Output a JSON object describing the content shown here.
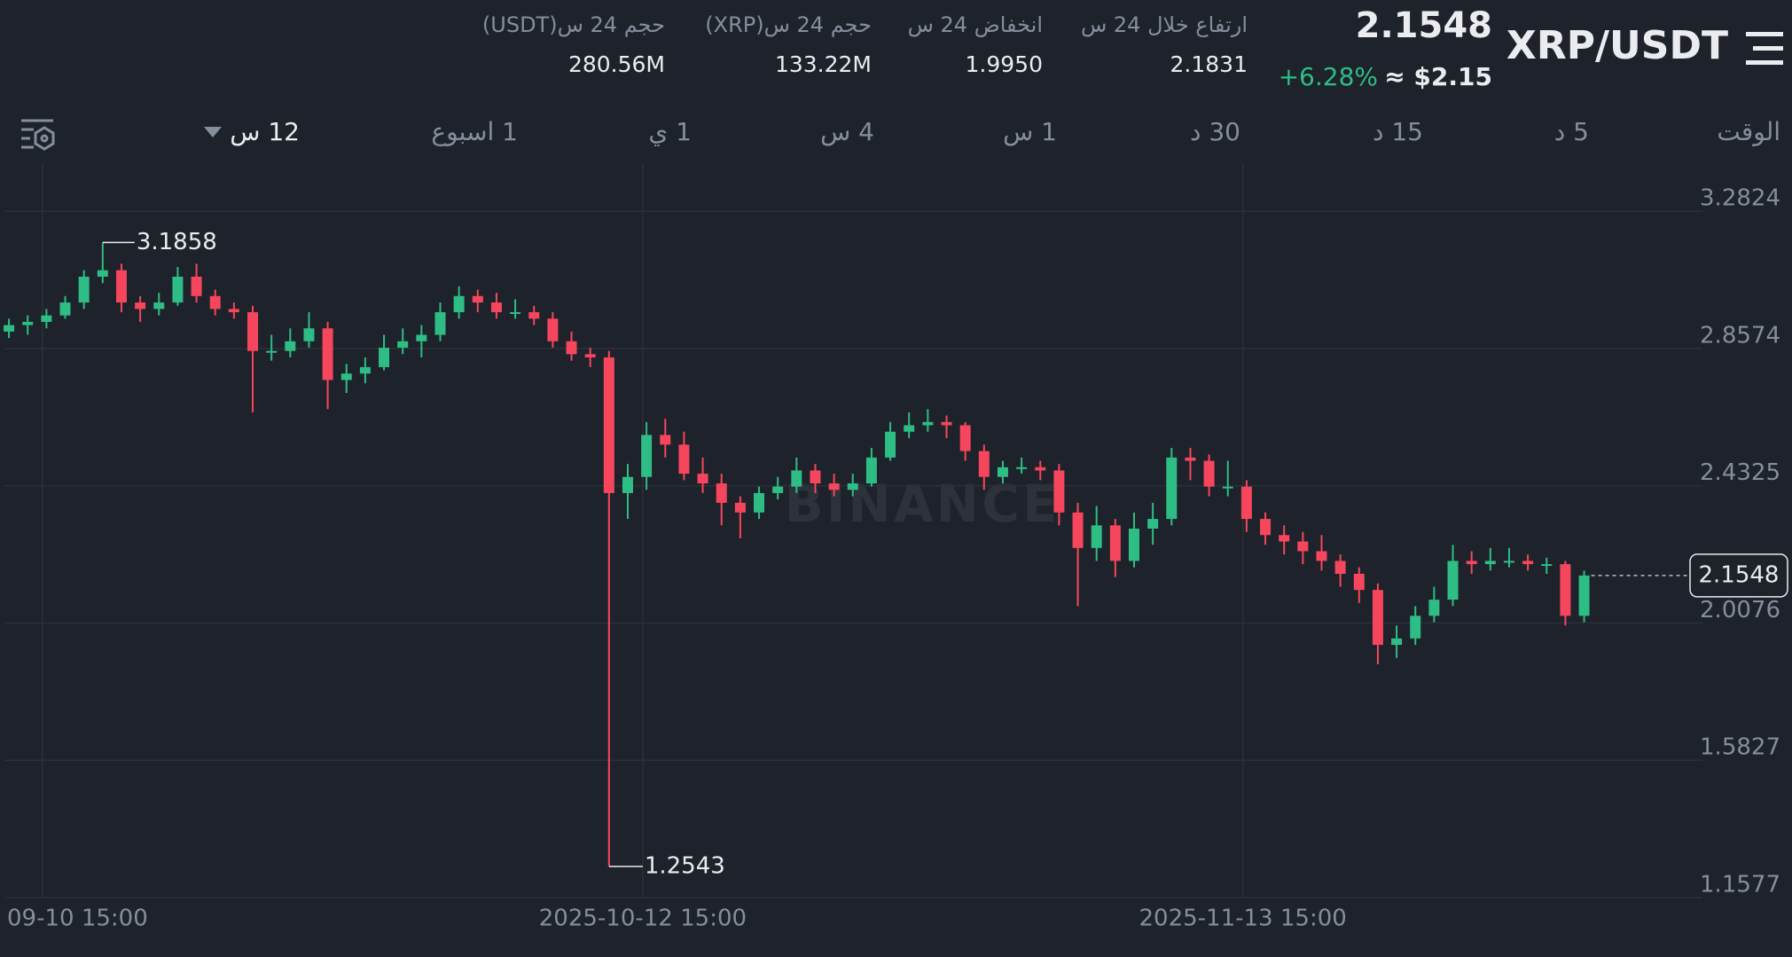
{
  "header": {
    "pair": "XRP/USDT",
    "last_price": "2.1548",
    "change": "+6.28%",
    "usd_price": "≈ $2.15",
    "stats": [
      {
        "label": "ارتفاع خلال 24 س",
        "value": "2.1831"
      },
      {
        "label": "انخفاض 24 س",
        "value": "1.9950"
      },
      {
        "label": "حجم 24 س(XRP)",
        "value": "133.22M"
      },
      {
        "label": "حجم 24 س(USDT)",
        "value": "280.56M"
      }
    ]
  },
  "intervals": [
    "الوقت",
    "5 د",
    "15 د",
    "30 د",
    "1 س",
    "4 س",
    "1 ي",
    "1 اسبوع",
    "12 س"
  ],
  "chart_data": {
    "type": "candlestick",
    "watermark": "BINANCE",
    "up_color": "#2ebd85",
    "down_color": "#f6465d",
    "grid": true,
    "ylim": [
      1.1577,
      3.4313
    ],
    "yticks": [
      3.2824,
      2.8574,
      2.4325,
      2.0076,
      1.5827,
      1.1577
    ],
    "xlim": [
      -0.24,
      89.6
    ],
    "xticks": [
      {
        "value": 1.78,
        "label": "09-10 15:00"
      },
      {
        "value": 33.8,
        "label": "2025-10-12 15:00"
      },
      {
        "value": 65.8,
        "label": "2025-11-13 15:00"
      }
    ],
    "ohlc": [
      [
        2.91,
        2.95,
        2.89,
        2.93
      ],
      [
        2.93,
        2.96,
        2.9,
        2.94
      ],
      [
        2.94,
        2.98,
        2.92,
        2.96
      ],
      [
        2.96,
        3.02,
        2.95,
        3.0
      ],
      [
        3.0,
        3.1,
        2.98,
        3.08
      ],
      [
        3.08,
        3.1858,
        3.06,
        3.1
      ],
      [
        3.1,
        3.12,
        2.97,
        3.0
      ],
      [
        3.0,
        3.02,
        2.94,
        2.98
      ],
      [
        2.98,
        3.03,
        2.96,
        3.0
      ],
      [
        3.0,
        3.11,
        2.99,
        3.08
      ],
      [
        3.08,
        3.12,
        3.0,
        3.02
      ],
      [
        3.02,
        3.04,
        2.96,
        2.98
      ],
      [
        2.98,
        3.0,
        2.95,
        2.97
      ],
      [
        2.97,
        2.99,
        2.66,
        2.85
      ],
      [
        2.85,
        2.9,
        2.82,
        2.85
      ],
      [
        2.85,
        2.92,
        2.83,
        2.88
      ],
      [
        2.88,
        2.97,
        2.86,
        2.92
      ],
      [
        2.92,
        2.94,
        2.67,
        2.76
      ],
      [
        2.76,
        2.81,
        2.72,
        2.78
      ],
      [
        2.78,
        2.83,
        2.75,
        2.8
      ],
      [
        2.8,
        2.9,
        2.79,
        2.86
      ],
      [
        2.86,
        2.92,
        2.84,
        2.88
      ],
      [
        2.88,
        2.93,
        2.83,
        2.9
      ],
      [
        2.9,
        3.0,
        2.88,
        2.97
      ],
      [
        2.97,
        3.05,
        2.95,
        3.02
      ],
      [
        3.02,
        3.04,
        2.97,
        3.0
      ],
      [
        3.0,
        3.03,
        2.95,
        2.97
      ],
      [
        2.97,
        3.01,
        2.95,
        2.97
      ],
      [
        2.97,
        2.99,
        2.93,
        2.95
      ],
      [
        2.95,
        2.97,
        2.86,
        2.88
      ],
      [
        2.88,
        2.91,
        2.82,
        2.84
      ],
      [
        2.84,
        2.86,
        2.8,
        2.83
      ],
      [
        2.83,
        2.85,
        1.2543,
        2.41
      ],
      [
        2.41,
        2.5,
        2.33,
        2.46
      ],
      [
        2.46,
        2.63,
        2.42,
        2.59
      ],
      [
        2.59,
        2.64,
        2.52,
        2.56
      ],
      [
        2.56,
        2.6,
        2.45,
        2.47
      ],
      [
        2.47,
        2.52,
        2.41,
        2.44
      ],
      [
        2.44,
        2.47,
        2.31,
        2.38
      ],
      [
        2.38,
        2.4,
        2.27,
        2.35
      ],
      [
        2.35,
        2.43,
        2.33,
        2.41
      ],
      [
        2.41,
        2.46,
        2.39,
        2.43
      ],
      [
        2.43,
        2.52,
        2.41,
        2.48
      ],
      [
        2.48,
        2.5,
        2.41,
        2.44
      ],
      [
        2.44,
        2.47,
        2.4,
        2.42
      ],
      [
        2.42,
        2.47,
        2.4,
        2.44
      ],
      [
        2.44,
        2.55,
        2.43,
        2.52
      ],
      [
        2.52,
        2.63,
        2.51,
        2.6
      ],
      [
        2.6,
        2.66,
        2.58,
        2.62
      ],
      [
        2.62,
        2.67,
        2.6,
        2.63
      ],
      [
        2.63,
        2.65,
        2.58,
        2.62
      ],
      [
        2.62,
        2.63,
        2.51,
        2.54
      ],
      [
        2.54,
        2.56,
        2.42,
        2.46
      ],
      [
        2.46,
        2.51,
        2.44,
        2.49
      ],
      [
        2.49,
        2.52,
        2.47,
        2.49
      ],
      [
        2.49,
        2.51,
        2.45,
        2.48
      ],
      [
        2.48,
        2.5,
        2.31,
        2.35
      ],
      [
        2.35,
        2.38,
        2.06,
        2.24
      ],
      [
        2.24,
        2.37,
        2.2,
        2.31
      ],
      [
        2.31,
        2.33,
        2.15,
        2.2
      ],
      [
        2.2,
        2.35,
        2.18,
        2.3
      ],
      [
        2.3,
        2.38,
        2.25,
        2.33
      ],
      [
        2.33,
        2.55,
        2.31,
        2.52
      ],
      [
        2.52,
        2.55,
        2.45,
        2.51
      ],
      [
        2.51,
        2.53,
        2.4,
        2.43
      ],
      [
        2.43,
        2.51,
        2.4,
        2.43
      ],
      [
        2.43,
        2.45,
        2.29,
        2.33
      ],
      [
        2.33,
        2.35,
        2.25,
        2.28
      ],
      [
        2.28,
        2.31,
        2.22,
        2.26
      ],
      [
        2.26,
        2.29,
        2.19,
        2.23
      ],
      [
        2.23,
        2.28,
        2.17,
        2.2
      ],
      [
        2.2,
        2.22,
        2.12,
        2.16
      ],
      [
        2.16,
        2.18,
        2.07,
        2.11
      ],
      [
        2.11,
        2.13,
        1.88,
        1.94
      ],
      [
        1.94,
        2.0,
        1.9,
        1.96
      ],
      [
        1.96,
        2.06,
        1.94,
        2.03
      ],
      [
        2.03,
        2.12,
        2.01,
        2.08
      ],
      [
        2.08,
        2.25,
        2.06,
        2.2
      ],
      [
        2.2,
        2.23,
        2.16,
        2.19
      ],
      [
        2.19,
        2.24,
        2.17,
        2.2
      ],
      [
        2.2,
        2.24,
        2.18,
        2.2
      ],
      [
        2.2,
        2.22,
        2.17,
        2.19
      ],
      [
        2.19,
        2.21,
        2.16,
        2.19
      ],
      [
        2.19,
        2.2,
        2.0,
        2.03
      ],
      [
        2.03,
        2.17,
        2.01,
        2.1548
      ]
    ]
  }
}
